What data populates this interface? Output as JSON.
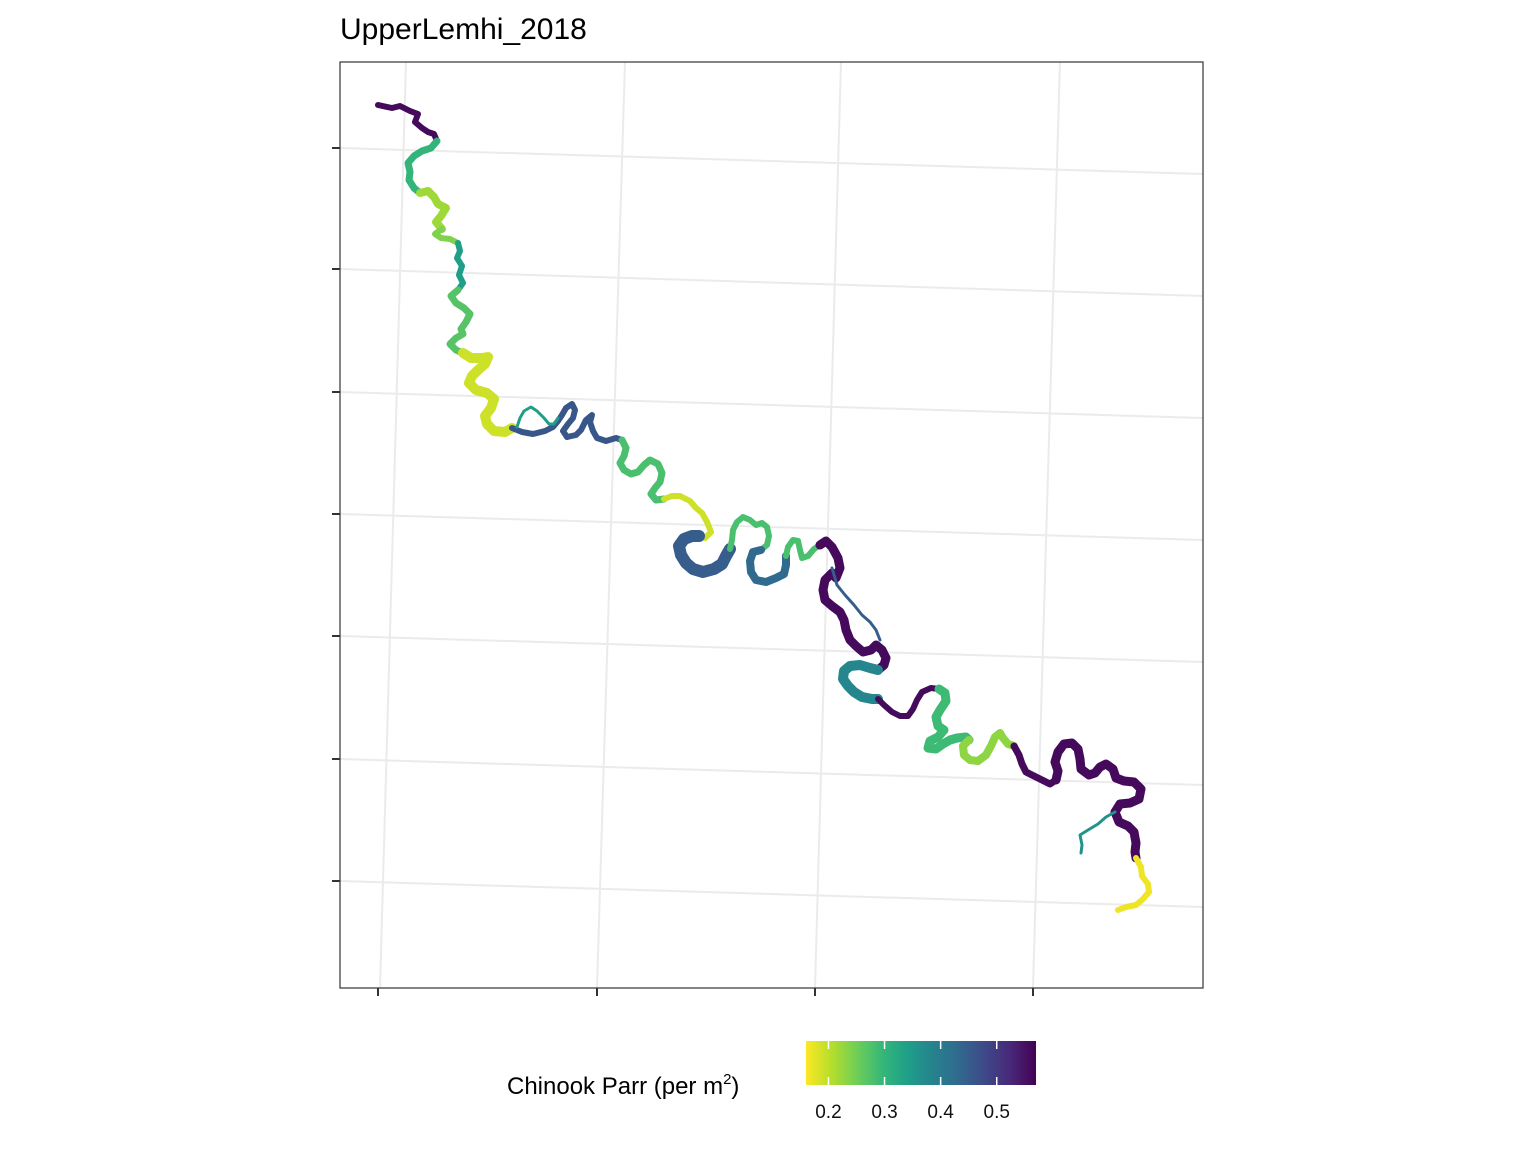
{
  "title": "UpperLemhi_2018",
  "legend": {
    "title_prefix": "Chinook Parr (per m",
    "title_superscript": "2",
    "title_suffix": ")",
    "tick_labels": [
      "0.2",
      "0.3",
      "0.4",
      "0.5"
    ],
    "tick_values": [
      0.2,
      0.3,
      0.4,
      0.5
    ],
    "range": [
      0.16,
      0.57
    ],
    "palette": [
      "#fde725",
      "#b5de2b",
      "#6ece58",
      "#35b779",
      "#1f9e89",
      "#26828e",
      "#31688e",
      "#3e4989",
      "#482878",
      "#440154"
    ]
  },
  "map": {
    "background": "#ffffff",
    "grid": "on",
    "gridline_color": "#ebebeb",
    "axis_tick_labels": "none",
    "river_segments": [
      {
        "name": "seg-01",
        "density": 0.56
      },
      {
        "name": "seg-02",
        "density": 0.3
      },
      {
        "name": "seg-03",
        "density": 0.22
      },
      {
        "name": "seg-04",
        "density": 0.24
      },
      {
        "name": "seg-05",
        "density": 0.34
      },
      {
        "name": "seg-06",
        "density": 0.27
      },
      {
        "name": "seg-07",
        "density": 0.19
      },
      {
        "name": "seg-08",
        "density": 0.46
      },
      {
        "name": "seg-09",
        "density": 0.34
      },
      {
        "name": "seg-10",
        "density": 0.46
      },
      {
        "name": "seg-11",
        "density": 0.28
      },
      {
        "name": "seg-12",
        "density": 0.19
      },
      {
        "name": "seg-13",
        "density": 0.45
      },
      {
        "name": "seg-14",
        "density": 0.28
      },
      {
        "name": "seg-15",
        "density": 0.43
      },
      {
        "name": "seg-16",
        "density": 0.28
      },
      {
        "name": "seg-17",
        "density": 0.56
      },
      {
        "name": "seg-18",
        "density": 0.45
      },
      {
        "name": "seg-19",
        "density": 0.38
      },
      {
        "name": "seg-20",
        "density": 0.56
      },
      {
        "name": "seg-21",
        "density": 0.29
      },
      {
        "name": "seg-22",
        "density": 0.23
      },
      {
        "name": "seg-23",
        "density": 0.56
      },
      {
        "name": "seg-24",
        "density": 0.56
      },
      {
        "name": "seg-25",
        "density": 0.36
      },
      {
        "name": "seg-26",
        "density": 0.17
      }
    ]
  }
}
